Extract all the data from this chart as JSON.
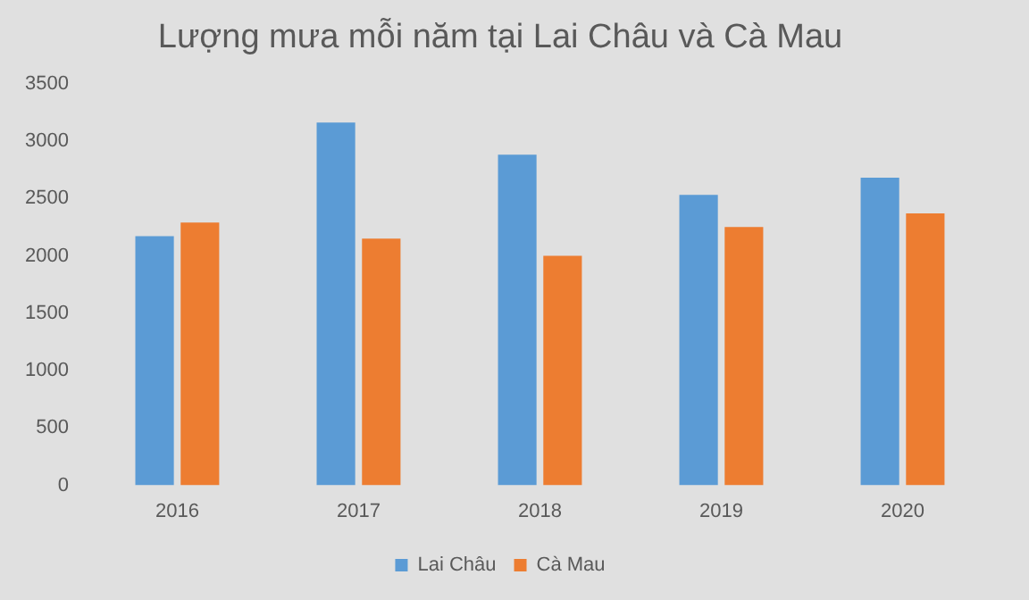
{
  "chart_data": {
    "type": "bar",
    "title": "Lượng mưa mỗi năm tại Lai Châu và Cà Mau",
    "categories": [
      "2016",
      "2017",
      "2018",
      "2019",
      "2020"
    ],
    "series": [
      {
        "name": "Lai Châu",
        "color": "#5b9bd5",
        "values": [
          2170,
          3160,
          2880,
          2530,
          2680
        ]
      },
      {
        "name": "Cà Mau",
        "color": "#ed7d31",
        "values": [
          2290,
          2150,
          2000,
          2250,
          2370
        ]
      }
    ],
    "ylim": [
      0,
      3500
    ],
    "yticks": [
      0,
      500,
      1000,
      1500,
      2000,
      2500,
      3000,
      3500
    ],
    "grid": false,
    "legend": "bottom"
  }
}
